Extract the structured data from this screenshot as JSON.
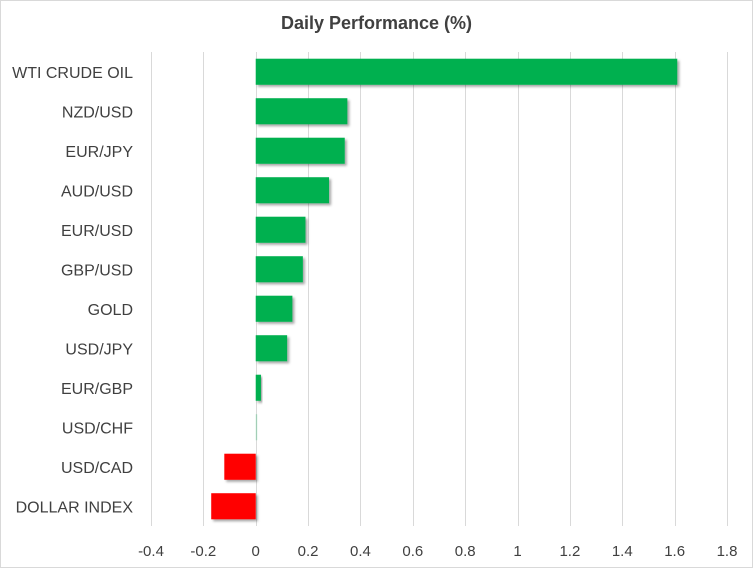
{
  "chart_data": {
    "type": "bar",
    "orientation": "horizontal",
    "title": "Daily Performance  (%)",
    "xlabel": "",
    "ylabel": "",
    "categories": [
      "WTI CRUDE OIL",
      "NZD/USD",
      "EUR/JPY",
      "AUD/USD",
      "EUR/USD",
      "GBP/USD",
      "GOLD",
      "USD/JPY",
      "EUR/GBP",
      "USD/CHF",
      "USD/CAD",
      "DOLLAR INDEX"
    ],
    "values": [
      1.61,
      0.35,
      0.34,
      0.28,
      0.19,
      0.18,
      0.14,
      0.12,
      0.02,
      0.005,
      -0.12,
      -0.17
    ],
    "xlim": [
      -0.4,
      1.8
    ],
    "xticks": [
      "-0.4",
      "-0.2",
      "0",
      "0.2",
      "0.4",
      "0.6",
      "0.8",
      "1",
      "1.2",
      "1.4",
      "1.6",
      "1.8"
    ],
    "grid": true,
    "legend": "none",
    "colors": {
      "positive": "#00b050",
      "negative": "#ff0000",
      "grid": "#d9d9d9",
      "text": "#404040"
    }
  }
}
